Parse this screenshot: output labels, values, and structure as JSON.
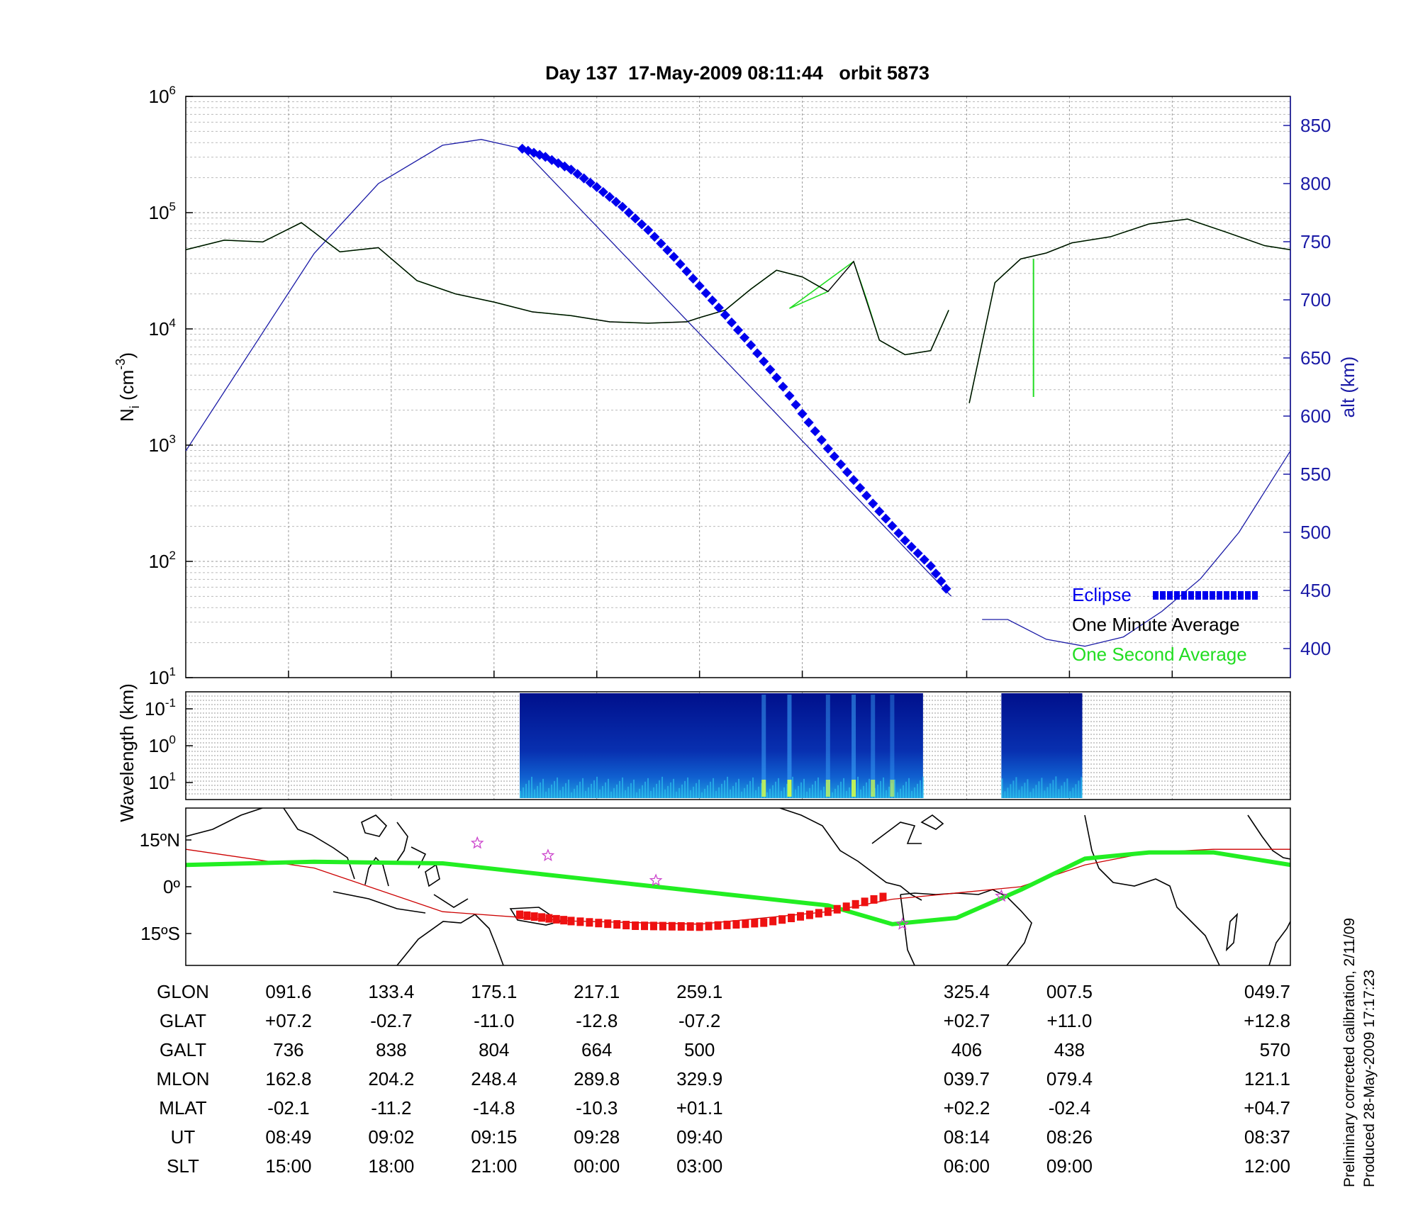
{
  "title": "Day 137  17-May-2009 08:11:44   orbit 5873",
  "colors": {
    "alt_axis": "#1a1aa6",
    "eclipse": "#0000ee",
    "minute_avg": "#000000",
    "second_avg": "#22dd22",
    "track": "#22ee22",
    "magnetic_equator": "#cc0000",
    "star": "#cc44cc"
  },
  "chart_data": [
    {
      "type": "line",
      "panel": "density",
      "ylabel_left": "N_i (cm^-3)",
      "ylabel_left_base": "N",
      "ylabel_left_sub": "i",
      "ylabel_left_unit_open": " (cm",
      "ylabel_left_unit_exp": "-3",
      "ylabel_left_unit_close": ")",
      "yscale": "log",
      "ylim": [
        10,
        1000000
      ],
      "yticks": [
        {
          "base": "10",
          "exp": "1",
          "value": 10
        },
        {
          "base": "10",
          "exp": "2",
          "value": 100
        },
        {
          "base": "10",
          "exp": "3",
          "value": 1000
        },
        {
          "base": "10",
          "exp": "4",
          "value": 10000
        },
        {
          "base": "10",
          "exp": "5",
          "value": 100000
        },
        {
          "base": "10",
          "exp": "6",
          "value": 1000000
        }
      ],
      "ylabel_right": "alt (km)",
      "ylim_right": [
        375,
        875
      ],
      "yticks_right": [
        "400",
        "450",
        "500",
        "550",
        "600",
        "650",
        "700",
        "750",
        "800",
        "850"
      ],
      "xlim": [
        0,
        8.6
      ],
      "grid": true,
      "legend_position": "bottom-right",
      "series": [
        {
          "name": "Eclipse",
          "role": "altitude in eclipse",
          "x": [
            2.62,
            2.8,
            3.0,
            3.2,
            3.4,
            3.6,
            3.8,
            4.0,
            4.2,
            4.4,
            4.6,
            4.8,
            5.0,
            5.2,
            5.4,
            5.6,
            5.8,
            5.96
          ],
          "y": [
            830,
            823,
            812,
            797,
            780,
            760,
            737,
            712,
            687,
            661,
            633,
            602,
            572,
            545,
            518,
            493,
            471,
            445
          ]
        },
        {
          "name": "One Minute Average",
          "x": [
            0.0,
            0.3,
            0.6,
            0.9,
            1.2,
            1.5,
            1.8,
            2.1,
            2.4,
            2.7,
            3.0,
            3.3,
            3.6,
            3.9,
            4.0,
            4.2,
            4.4,
            4.6,
            4.8,
            5.0,
            5.2,
            5.4,
            5.6,
            5.8,
            5.94,
            6.1,
            6.3,
            6.5,
            6.7,
            6.9,
            7.2,
            7.5,
            7.8,
            8.1,
            8.4,
            8.6
          ],
          "y": [
            48000,
            58000,
            56000,
            82000,
            46000,
            50000,
            26000,
            20000,
            17000,
            14000,
            13000,
            11500,
            11200,
            11500,
            12500,
            14500,
            22000,
            32000,
            28000,
            21000,
            38000,
            8000,
            6000,
            6500,
            14500,
            2300,
            25000,
            40000,
            45000,
            55000,
            62000,
            80000,
            88000,
            68000,
            52000,
            48000
          ]
        },
        {
          "name": "One Second Average",
          "x": [
            0.0,
            0.3,
            0.6,
            0.9,
            1.2,
            1.5,
            1.8,
            2.1,
            2.4,
            2.7,
            3.0,
            3.3,
            3.6,
            3.9,
            4.0,
            4.2,
            4.4,
            4.6,
            4.8,
            5.0,
            4.7,
            5.2,
            5.3,
            5.4,
            5.6,
            5.8,
            5.94,
            6.1,
            6.3,
            6.5,
            6.7,
            6.9,
            7.2,
            7.5,
            7.8,
            8.1,
            8.4,
            8.6
          ],
          "y": [
            48000,
            58000,
            56000,
            82000,
            46000,
            50000,
            26000,
            20000,
            17000,
            14000,
            13000,
            11500,
            11200,
            11500,
            12500,
            14500,
            22000,
            32000,
            28000,
            21000,
            15000,
            38000,
            18000,
            8000,
            6000,
            6500,
            14500,
            2300,
            25000,
            40000,
            45000,
            55000,
            62000,
            80000,
            88000,
            68000,
            52000,
            48000
          ]
        },
        {
          "name": "",
          "role": "altitude (km)",
          "x": [
            0.0,
            0.5,
            1.0,
            1.5,
            2.0,
            2.3,
            2.62,
            5.96,
            6.2,
            6.4,
            6.7,
            7.0,
            7.3,
            7.6,
            7.9,
            8.2,
            8.6
          ],
          "y": [
            570,
            655,
            740,
            800,
            833,
            838,
            830,
            445,
            425,
            425,
            408,
            402,
            410,
            432,
            460,
            500,
            570
          ]
        }
      ],
      "legend": [
        {
          "name": "Eclipse"
        },
        {
          "name": "One Minute Average"
        },
        {
          "name": "One Second Average"
        }
      ]
    },
    {
      "type": "heatmap",
      "panel": "spectrogram",
      "ylabel": "Wavelength (km)",
      "yscale": "log",
      "yticks": [
        {
          "base": "10",
          "exp": "-1"
        },
        {
          "base": "10",
          "exp": "0"
        },
        {
          "base": "10",
          "exp": "1"
        }
      ],
      "data_blocks": [
        {
          "x_start": 2.6,
          "x_end": 5.74
        },
        {
          "x_start": 6.35,
          "x_end": 6.98
        }
      ],
      "bright_bands": [
        {
          "x": 4.5,
          "intensity": 0.8
        },
        {
          "x": 4.7,
          "intensity": 0.9
        },
        {
          "x": 5.0,
          "intensity": 0.7
        },
        {
          "x": 5.2,
          "intensity": 0.85
        },
        {
          "x": 5.35,
          "intensity": 0.7
        },
        {
          "x": 5.5,
          "intensity": 0.6
        }
      ]
    },
    {
      "type": "line",
      "panel": "map",
      "yticks": [
        "15ºN",
        "0º",
        "15ºS"
      ],
      "series": [
        {
          "name": "",
          "role": "satellite ground track",
          "x": [
            0.0,
            1.0,
            2.0,
            3.0,
            4.0,
            5.0,
            5.5,
            6.0,
            6.5,
            7.0,
            7.5,
            8.0,
            8.6
          ],
          "y": [
            7,
            8,
            7.5,
            3,
            -1.5,
            -6,
            -12,
            -10,
            -1,
            9,
            11,
            11,
            7
          ]
        },
        {
          "name": "",
          "role": "eclipse track",
          "x": [
            2.6,
            3.0,
            3.5,
            4.0,
            4.5,
            5.0,
            5.5
          ],
          "y": [
            -9,
            -11,
            -12.5,
            -12.8,
            -11.5,
            -8,
            -2.5
          ]
        },
        {
          "name": "",
          "role": "magnetic equator",
          "x": [
            0.0,
            1.0,
            2.0,
            3.0,
            4.0,
            5.0,
            5.5,
            6.0,
            6.5,
            7.0,
            7.5,
            8.0,
            8.6
          ],
          "y": [
            12,
            6,
            -8,
            -11,
            -12,
            -8,
            -4,
            -2,
            0,
            7,
            11,
            12,
            12
          ]
        }
      ],
      "stars": [
        {
          "x": 2.27,
          "y": 14
        },
        {
          "x": 2.82,
          "y": 10
        },
        {
          "x": 3.66,
          "y": 2
        },
        {
          "x": 5.58,
          "y": -12
        },
        {
          "x": 6.35,
          "y": -3
        }
      ]
    }
  ],
  "table": {
    "rows": [
      {
        "label": "GLON",
        "values": [
          "091.6",
          "133.4",
          "175.1",
          "217.1",
          "259.1",
          "325.4",
          "007.5",
          "049.7"
        ]
      },
      {
        "label": "GLAT",
        "values": [
          "+07.2",
          "-02.7",
          "-11.0",
          "-12.8",
          "-07.2",
          "+02.7",
          "+11.0",
          "+12.8"
        ]
      },
      {
        "label": "GALT",
        "values": [
          "736",
          "838",
          "804",
          "664",
          "500",
          "406",
          "438",
          "570"
        ]
      },
      {
        "label": "MLON",
        "values": [
          "162.8",
          "204.2",
          "248.4",
          "289.8",
          "329.9",
          "039.7",
          "079.4",
          "121.1"
        ]
      },
      {
        "label": "MLAT",
        "values": [
          "-02.1",
          "-11.2",
          "-14.8",
          "-10.3",
          "+01.1",
          "+02.2",
          "-02.4",
          "+04.7"
        ]
      },
      {
        "label": "UT",
        "values": [
          "08:49",
          "09:02",
          "09:15",
          "09:28",
          "09:40",
          "08:14",
          "08:26",
          "08:37"
        ]
      },
      {
        "label": "SLT",
        "values": [
          "15:00",
          "18:00",
          "21:00",
          "00:00",
          "03:00",
          "06:00",
          "09:00",
          "12:00"
        ]
      }
    ]
  },
  "footer": {
    "line1": "Preliminary corrected calibration, 2/11/09",
    "line2": "Produced 28-May-2009 17:17:23"
  }
}
